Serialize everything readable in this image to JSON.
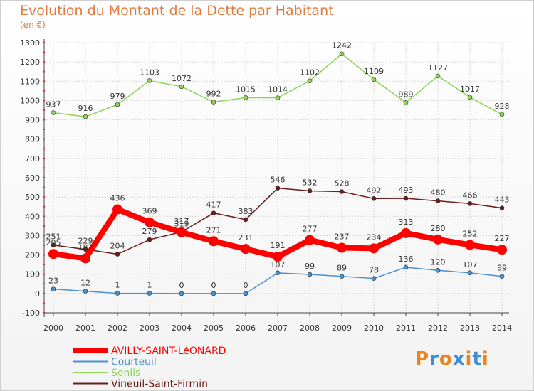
{
  "header": {
    "title": "Evolution du Montant de la Dette par Habitant",
    "unit": "(en €)"
  },
  "logo": {
    "text": "Proxiti",
    "colors": [
      "#e8851e",
      "#3a8fd8",
      "#e8851e",
      "#3a8fd8",
      "#e8851e",
      "#3a8fd8",
      "#e8851e"
    ]
  },
  "chart_data": {
    "type": "line",
    "title": "Evolution du Montant de la Dette par Habitant",
    "ylabel": "(en €)",
    "xlabel": "",
    "ylim": [
      -100,
      1300
    ],
    "yticks": [
      -100,
      0,
      100,
      200,
      300,
      400,
      500,
      600,
      700,
      800,
      900,
      1000,
      1100,
      1200,
      1300
    ],
    "grid": true,
    "legend_position": "bottom",
    "x": [
      "2000",
      "2001",
      "2002",
      "2003",
      "2004",
      "2005",
      "2006",
      "2007",
      "2008",
      "2009",
      "2010",
      "2011",
      "2012",
      "2013",
      "2014"
    ],
    "series": [
      {
        "name": "Vineuil-Saint-Firmin",
        "color": "#6b1c1c",
        "values": [
          251,
          229,
          204,
          279,
          319,
          417,
          383,
          546,
          532,
          528,
          492,
          493,
          480,
          466,
          443
        ]
      },
      {
        "name": "Senlis",
        "color": "#8fd45a",
        "values": [
          937,
          916,
          979,
          1103,
          1072,
          992,
          1015,
          1014,
          1102,
          1242,
          1109,
          989,
          1127,
          1017,
          928
        ]
      },
      {
        "name": "Courteuil",
        "color": "#4b92cf",
        "values": [
          23,
          12,
          1,
          1,
          0,
          0,
          0,
          107,
          99,
          89,
          78,
          136,
          120,
          107,
          89
        ]
      },
      {
        "name": "AVILLY-SAINT-LéONARD",
        "color": "#ff0000",
        "values": [
          205,
          182,
          436,
          369,
          317,
          271,
          231,
          191,
          277,
          237,
          234,
          313,
          280,
          252,
          227
        ]
      }
    ],
    "legend": [
      "AVILLY-SAINT-LéONARD",
      "Courteuil",
      "Senlis",
      "Vineuil-Saint-Firmin"
    ]
  }
}
